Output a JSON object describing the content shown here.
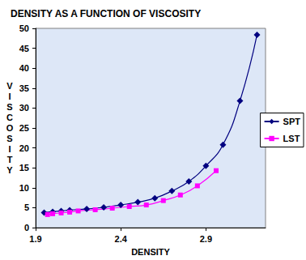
{
  "chart_data": {
    "type": "line",
    "title": "DENSITY AS A FUNCTION OF VISCOSITY",
    "x_label": "DENSITY",
    "y_label": "VISCOSITY",
    "series": [
      {
        "name": "SPT",
        "color": "#000080",
        "marker": "diamond",
        "line_style": "solid",
        "x": [
          1.95,
          2.0,
          2.05,
          2.1,
          2.2,
          2.3,
          2.4,
          2.5,
          2.6,
          2.7,
          2.8,
          2.9,
          3.0,
          3.1,
          3.2
        ],
        "values": [
          3.8,
          4.0,
          4.2,
          4.4,
          4.7,
          5.1,
          5.7,
          6.4,
          7.4,
          9.2,
          11.6,
          15.5,
          20.8,
          31.8,
          48.4
        ]
      },
      {
        "name": "LST",
        "color": "#ff00ff",
        "marker": "square",
        "line_style": "solid",
        "x": [
          1.97,
          2.0,
          2.05,
          2.1,
          2.15,
          2.25,
          2.35,
          2.45,
          2.55,
          2.65,
          2.75,
          2.85,
          2.96
        ],
        "values": [
          3.3,
          3.5,
          3.7,
          3.9,
          4.2,
          4.5,
          4.9,
          5.3,
          5.7,
          6.8,
          8.2,
          10.5,
          14.3
        ]
      }
    ],
    "xlim": [
      1.9,
      3.25
    ],
    "xticks": [
      1.9,
      2.4,
      2.9
    ],
    "ylim": [
      0,
      50
    ],
    "yticks": [
      0,
      5,
      10,
      15,
      20,
      25,
      30,
      35,
      40,
      45,
      50
    ],
    "grid": false,
    "legend": "right"
  }
}
